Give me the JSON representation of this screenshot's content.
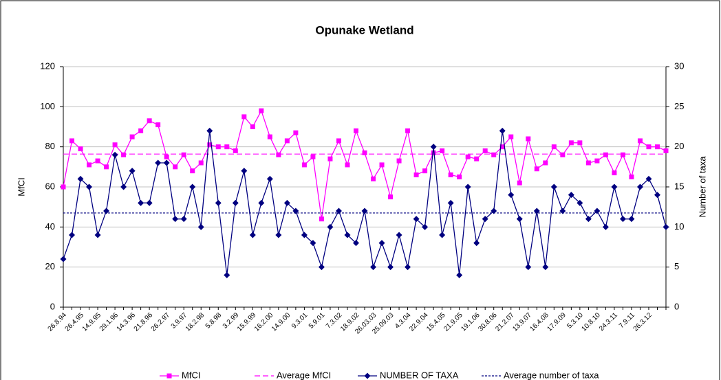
{
  "chart_data": {
    "type": "line",
    "title": "Opunake Wetland",
    "y_label": "MfCI",
    "y2_label": "Number of taxa",
    "categories": [
      "26.8.94",
      null,
      "26.4.95",
      null,
      "14.9.95",
      null,
      "29.1.96",
      null,
      "14.3.96",
      null,
      "21.8.96",
      null,
      "26.2.97",
      null,
      "3.9.97",
      null,
      "18.2.98",
      null,
      "5.8.98",
      null,
      "3.2.99",
      null,
      "15.9.99",
      null,
      "16.2.00",
      null,
      "14.9.00",
      null,
      "9.3.01",
      null,
      "5.9.01",
      null,
      "7.3.02",
      null,
      "18.9.02",
      null,
      "26.03.03",
      null,
      "25.09.03",
      null,
      "4.3.04",
      null,
      "22.9.04",
      null,
      "15.4.05",
      null,
      "21.9.05",
      null,
      "19.1.06",
      null,
      "30.8.06",
      null,
      "21.2.07",
      null,
      "13.9.07",
      null,
      "16.4.08",
      null,
      "17.9.09",
      null,
      "5.3.10",
      null,
      "10.8.10",
      null,
      "24.3.11",
      null,
      "7.9.11",
      null,
      "26.3.12",
      null,
      null
    ],
    "series": [
      {
        "name": "MfCI",
        "color": "#ff00ff",
        "axis": "y",
        "marker": "square",
        "values": [
          60,
          83,
          79,
          71,
          73,
          70,
          81,
          76,
          85,
          88,
          93,
          91,
          75,
          70,
          76,
          68,
          72,
          81,
          80,
          80,
          78,
          95,
          90,
          98,
          85,
          76,
          83,
          87,
          71,
          75,
          44,
          74,
          83,
          71,
          88,
          77,
          64,
          71,
          55,
          73,
          88,
          66,
          68,
          77,
          78,
          66,
          65,
          75,
          74,
          78,
          76,
          80,
          85,
          62,
          84,
          69,
          72,
          80,
          76,
          82,
          82,
          72,
          73,
          76,
          67,
          76,
          65,
          83,
          80,
          80,
          78
        ]
      },
      {
        "name": "Average MfCI",
        "color": "#ff00ff",
        "axis": "y",
        "dash": "8,4",
        "value": 76.4
      },
      {
        "name": "NUMBER OF TAXA",
        "color": "#000080",
        "axis": "y2",
        "marker": "diamond",
        "values": [
          6,
          9,
          16,
          15,
          9,
          12,
          19,
          15,
          17,
          13,
          13,
          18,
          18,
          11,
          11,
          15,
          10,
          22,
          13,
          4,
          13,
          17,
          9,
          13,
          16,
          9,
          13,
          12,
          9,
          8,
          5,
          10,
          12,
          9,
          8,
          12,
          5,
          8,
          5,
          9,
          5,
          11,
          10,
          20,
          9,
          13,
          4,
          15,
          8,
          11,
          12,
          22,
          14,
          11,
          5,
          12,
          5,
          15,
          12,
          14,
          13,
          11,
          12,
          10,
          15,
          11,
          11,
          15,
          16,
          14,
          10
        ]
      },
      {
        "name": "Average number of taxa",
        "color": "#000080",
        "axis": "y2",
        "dash": "3,2",
        "value": 11.75
      }
    ],
    "ylim": [
      0,
      120
    ],
    "yticks": [
      0,
      20,
      40,
      60,
      80,
      100,
      120
    ],
    "y2lim": [
      0,
      30
    ],
    "y2ticks": [
      0,
      5,
      10,
      15,
      20,
      25,
      30
    ],
    "grid": true,
    "legend": "bottom"
  }
}
